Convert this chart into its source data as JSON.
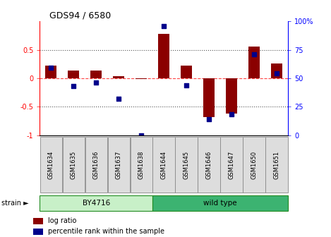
{
  "title": "GDS94 / 6580",
  "samples": [
    "GSM1634",
    "GSM1635",
    "GSM1636",
    "GSM1637",
    "GSM1638",
    "GSM1644",
    "GSM1645",
    "GSM1646",
    "GSM1647",
    "GSM1650",
    "GSM1651"
  ],
  "log_ratio": [
    0.22,
    0.14,
    0.13,
    0.04,
    -0.02,
    0.78,
    0.22,
    -0.68,
    -0.62,
    0.56,
    0.26
  ],
  "percentile_rank": [
    59,
    43,
    46,
    32,
    0,
    96,
    44,
    14,
    18,
    71,
    54
  ],
  "strain_groups": [
    {
      "label": "BY4716",
      "start": 0,
      "end": 5,
      "color": "#C8F0C8"
    },
    {
      "label": "wild type",
      "start": 5,
      "end": 11,
      "color": "#3CB371"
    }
  ],
  "bar_color": "#8B0000",
  "dot_color": "#00008B",
  "zero_line_color": "#FF4444",
  "dotted_line_color": "#555555",
  "ylim_left": [
    -1,
    1
  ],
  "ylim_right": [
    0,
    100
  ],
  "yticks_left": [
    -1,
    -0.5,
    0,
    0.5
  ],
  "ytick_labels_left": [
    "-1",
    "-0.5",
    "0",
    "0.5"
  ],
  "yticks_right": [
    0,
    25,
    50,
    75,
    100
  ],
  "ytick_labels_right": [
    "0",
    "25",
    "50",
    "75",
    "100%"
  ],
  "hlines": [
    0.5,
    -0.5
  ],
  "bg_color": "#FFFFFF",
  "plot_bg_color": "#FFFFFF",
  "bar_width": 0.5
}
